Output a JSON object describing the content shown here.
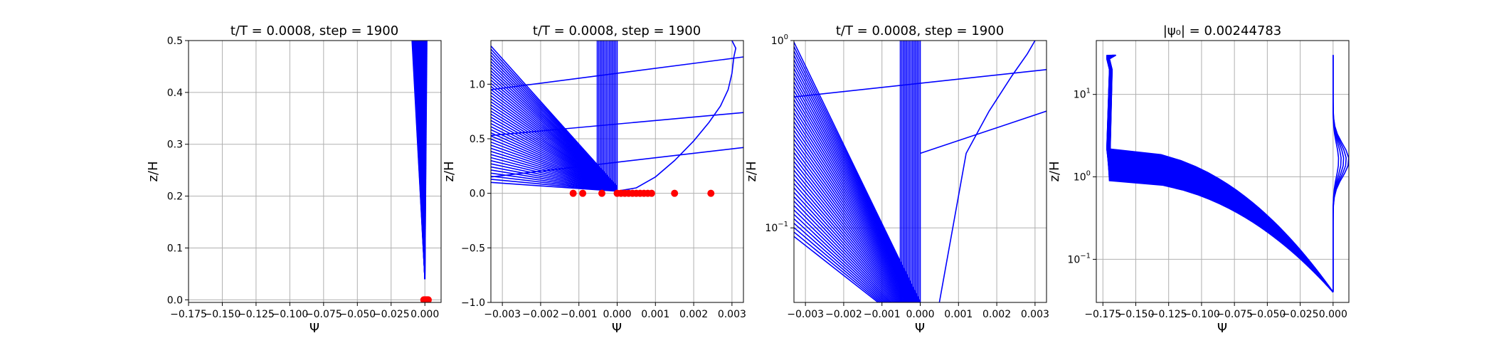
{
  "chart_data": [
    {
      "type": "line",
      "title": "t/T = 0.0008, step = 1900",
      "xlabel": "Ψ",
      "ylabel": "z/H",
      "xscale": "linear",
      "yscale": "linear",
      "xlim": [
        -0.175,
        0.012
      ],
      "ylim": [
        -0.005,
        0.5
      ],
      "xticks": [
        -0.175,
        -0.15,
        -0.125,
        -0.1,
        -0.075,
        -0.05,
        -0.025,
        0.0
      ],
      "xtick_labels": [
        "−0.175",
        "−0.150",
        "−0.125",
        "−0.100",
        "−0.075",
        "−0.050",
        "−0.025",
        "0.000"
      ],
      "yticks": [
        0.0,
        0.1,
        0.2,
        0.3,
        0.4,
        0.5
      ],
      "ytick_labels": [
        "0.0",
        "0.1",
        "0.2",
        "0.3",
        "0.4",
        "0.5"
      ],
      "grid": true,
      "fan": {
        "apex": [
          0.0,
          0.04
        ],
        "top_left": [
          -0.0095,
          0.5
        ],
        "top_right": [
          0.0015,
          0.5
        ],
        "count": 45
      },
      "markers": {
        "x": [
          -0.0008,
          -0.0004,
          0.0,
          0.0003,
          0.0006,
          0.001,
          0.0014,
          0.0018,
          0.0022,
          0.0025
        ],
        "y": [
          0,
          0,
          0,
          0,
          0,
          0,
          0,
          0,
          0,
          0
        ]
      }
    },
    {
      "type": "line",
      "title": "t/T = 0.0008, step = 1900",
      "xlabel": "Ψ",
      "ylabel": "z/H",
      "xscale": "linear",
      "yscale": "linear",
      "xlim": [
        -0.0033,
        0.0033
      ],
      "ylim": [
        -1.0,
        1.4
      ],
      "xticks": [
        -0.003,
        -0.002,
        -0.001,
        0.0,
        0.001,
        0.002,
        0.003
      ],
      "xtick_labels": [
        "−0.003",
        "−0.002",
        "−0.001",
        "0.000",
        "0.001",
        "0.002",
        "0.003"
      ],
      "yticks": [
        -1.0,
        -0.5,
        0.0,
        0.5,
        1.0
      ],
      "ytick_labels": [
        "−1.0",
        "−0.5",
        "0.0",
        "0.5",
        "1.0"
      ],
      "grid": true,
      "fan": {
        "apex_x": 0.0,
        "apex_y_min": 0.02,
        "left_x": -0.0033,
        "left_y_range": [
          0.1,
          1.35
        ],
        "vertical_top": 1.4,
        "count": 45
      },
      "lines": [
        {
          "x": [
            -0.0033,
            0.0033
          ],
          "y": [
            0.95,
            1.25
          ]
        },
        {
          "x": [
            -0.0033,
            0.0033
          ],
          "y": [
            0.53,
            0.74
          ]
        },
        {
          "x": [
            -0.0033,
            0.0033
          ],
          "y": [
            0.15,
            0.42
          ]
        }
      ],
      "profile": {
        "x": [
          0.0,
          0.0005,
          0.001,
          0.0015,
          0.002,
          0.0024,
          0.0027,
          0.0029,
          0.003,
          0.00305,
          0.0031,
          0.003
        ],
        "y": [
          0.02,
          0.05,
          0.15,
          0.3,
          0.48,
          0.65,
          0.8,
          0.95,
          1.1,
          1.25,
          1.33,
          1.4
        ]
      },
      "markers": {
        "x": [
          -0.00115,
          -0.0009,
          -0.0004,
          0.0,
          0.0001,
          0.0002,
          0.0003,
          0.0004,
          0.0005,
          0.0006,
          0.0007,
          0.0008,
          0.0009,
          0.0015,
          0.00245
        ],
        "y": [
          0,
          0,
          0,
          0,
          0,
          0,
          0,
          0,
          0,
          0,
          0,
          0,
          0,
          0,
          0
        ]
      }
    },
    {
      "type": "line",
      "title": "t/T = 0.0008, step = 1900",
      "xlabel": "Ψ",
      "ylabel": "z/H",
      "xscale": "linear",
      "yscale": "log",
      "xlim": [
        -0.0033,
        0.0033
      ],
      "ylim": [
        0.04,
        1.0
      ],
      "xticks": [
        -0.003,
        -0.002,
        -0.001,
        0.0,
        0.001,
        0.002,
        0.003
      ],
      "xtick_labels": [
        "−0.003",
        "−0.002",
        "−0.001",
        "0.000",
        "0.001",
        "0.002",
        "0.003"
      ],
      "yticks": [
        0.1,
        1.0
      ],
      "ytick_labels": [
        {
          "base": "10",
          "exp": "−1"
        },
        {
          "base": "10",
          "exp": "0"
        }
      ],
      "grid": true,
      "fan": {
        "apex_x": 0.0,
        "left_x": -0.0033,
        "left_y_range": [
          0.09,
          0.98
        ],
        "count": 45
      },
      "lines": [
        {
          "x": [
            -0.0033,
            0.0033
          ],
          "y": [
            0.5,
            0.7
          ]
        },
        {
          "x": [
            0.0,
            0.0033
          ],
          "y": [
            0.25,
            0.42
          ]
        }
      ],
      "profile": {
        "x": [
          0.0005,
          0.0012,
          0.0018,
          0.0024,
          0.0028,
          0.003
        ],
        "y": [
          0.04,
          0.25,
          0.42,
          0.65,
          0.85,
          1.0
        ]
      }
    },
    {
      "type": "line",
      "title": "|ψ₀| = 0.00244783",
      "xlabel": "Ψ",
      "ylabel": "z/H",
      "xscale": "linear",
      "yscale": "log",
      "xlim": [
        -0.18,
        0.012
      ],
      "ylim": [
        0.03,
        45
      ],
      "xticks": [
        -0.175,
        -0.15,
        -0.125,
        -0.1,
        -0.075,
        -0.05,
        -0.025,
        0.0
      ],
      "xtick_labels": [
        "−0.175",
        "−0.150",
        "−0.125",
        "−0.100",
        "−0.075",
        "−0.050",
        "−0.025",
        "0.000"
      ],
      "yticks": [
        0.1,
        1.0,
        10.0
      ],
      "ytick_labels": [
        {
          "base": "10",
          "exp": "−1"
        },
        {
          "base": "10",
          "exp": "0"
        },
        {
          "base": "10",
          "exp": "1"
        }
      ],
      "grid": true,
      "envelope": {
        "top_y": 30,
        "bottom_y": 0.04,
        "left_x": -0.172,
        "right_x": 0.0,
        "bulge_x": 0.012,
        "count": 60
      }
    }
  ]
}
